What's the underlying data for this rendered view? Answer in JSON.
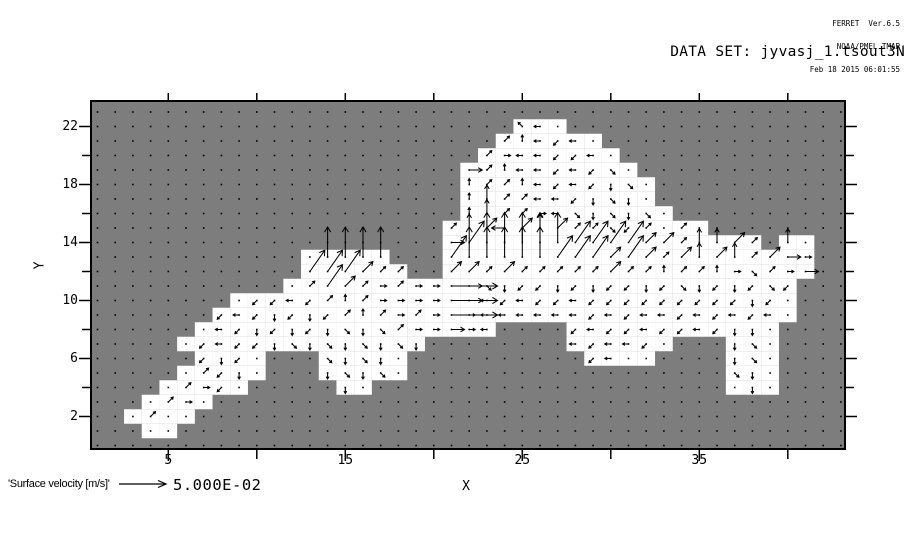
{
  "header": {
    "app_version": "FERRET  Ver.6.5",
    "organization": "NOAA/PMEL TMAP",
    "timestamp": "Feb 18 2015 06:01:55"
  },
  "title": "DATA SET: jyvasj_1.tsout3N",
  "colors": {
    "land_gray": "#7d7d7d",
    "water_white": "#ffffff",
    "ink_black": "#000000",
    "page_bg": "#ffffff"
  },
  "chart_data": {
    "type": "vector_field",
    "title": "DATA SET: jyvasj_1.tsout3N",
    "xlabel": "X",
    "ylabel": "Y",
    "xlim": [
      0.6,
      43.4
    ],
    "ylim": [
      -0.3,
      23.9
    ],
    "x_major_ticks": [
      5,
      15,
      25,
      35
    ],
    "x_minor_ticks": [
      10,
      20,
      30,
      40
    ],
    "y_ticks": [
      2,
      4,
      6,
      8,
      10,
      12,
      14,
      16,
      18,
      20,
      22
    ],
    "y_labeled_ticks": [
      2,
      6,
      10,
      14,
      18,
      22
    ],
    "grid_on": false,
    "legend_position": "bottom-left",
    "reference_vector": {
      "label": "'Surface velocity [m/s]'",
      "value": "5.000E-02"
    },
    "grid": {
      "cols": 43,
      "rows": 24,
      "x_of_col": "x = col_index + 1",
      "y_of_row": "y = 23 - row_index",
      "note": "each char = one grid cell; '.'=land(gray), letters/digits=water cell with arrow code, 'o'=water cell with dot only"
    },
    "cell_codes": {
      ".": "land",
      "o": [
        0,
        0
      ],
      "a": [
        0,
        6
      ],
      "b": [
        45,
        7
      ],
      "c": [
        90,
        6
      ],
      "d": [
        135,
        6
      ],
      "e": [
        180,
        6
      ],
      "f": [
        225,
        6
      ],
      "g": [
        270,
        6
      ],
      "h": [
        315,
        6
      ],
      "A": [
        0,
        13
      ],
      "B": [
        45,
        14
      ],
      "C": [
        90,
        14
      ],
      "D": [
        135,
        13
      ],
      "E": [
        180,
        13
      ],
      "F": [
        225,
        13
      ],
      "G": [
        270,
        13
      ],
      "H": [
        315,
        13
      ],
      "1": [
        0,
        46
      ],
      "2": [
        55,
        26
      ],
      "3": [
        90,
        30
      ]
    },
    "rows": [
      "...........................................",
      "........................deo................",
      ".......................bcefeo..............",
      "......................baeeffeo.............",
      ".....................Abceefefho............",
      ".....................cbbcefefgho...........",
      ".....................cCbbeefghgo...........",
      ".....................cCbbaehghgho..........",
      "....................bCBEBCBbbhfbobo........",
      "....................A2333332222BBbCCBb.Co..",
      "............o3333...233333222B2BbBCBCbBAa..",
      "............222Bbb..BBbBbbbbbBbbcbbcahbaA..",
      "...........ob2Bbabaa1Ahgffgfgffgfhgfgfhf...",
      "........offefbcbaaaa1Aefeffefffffffffgfo...",
      ".......fefgfgfbcbaba1aeeeeeefefeefefefeo...",
      "......oefgfgfghghbaaAae....feffeffefggo....",
      ".....ofeffghghghghg........efeefo...gho....",
      "......fgfo...hghgo..........feoo....gho....",
      ".....obfgo...ghgho..................hgo....",
      "....obafo.....go....................ogo....",
      "...obao....................................",
      "..oboo.....................................",
      "...oo......................................",
      "..........................................."
    ]
  }
}
